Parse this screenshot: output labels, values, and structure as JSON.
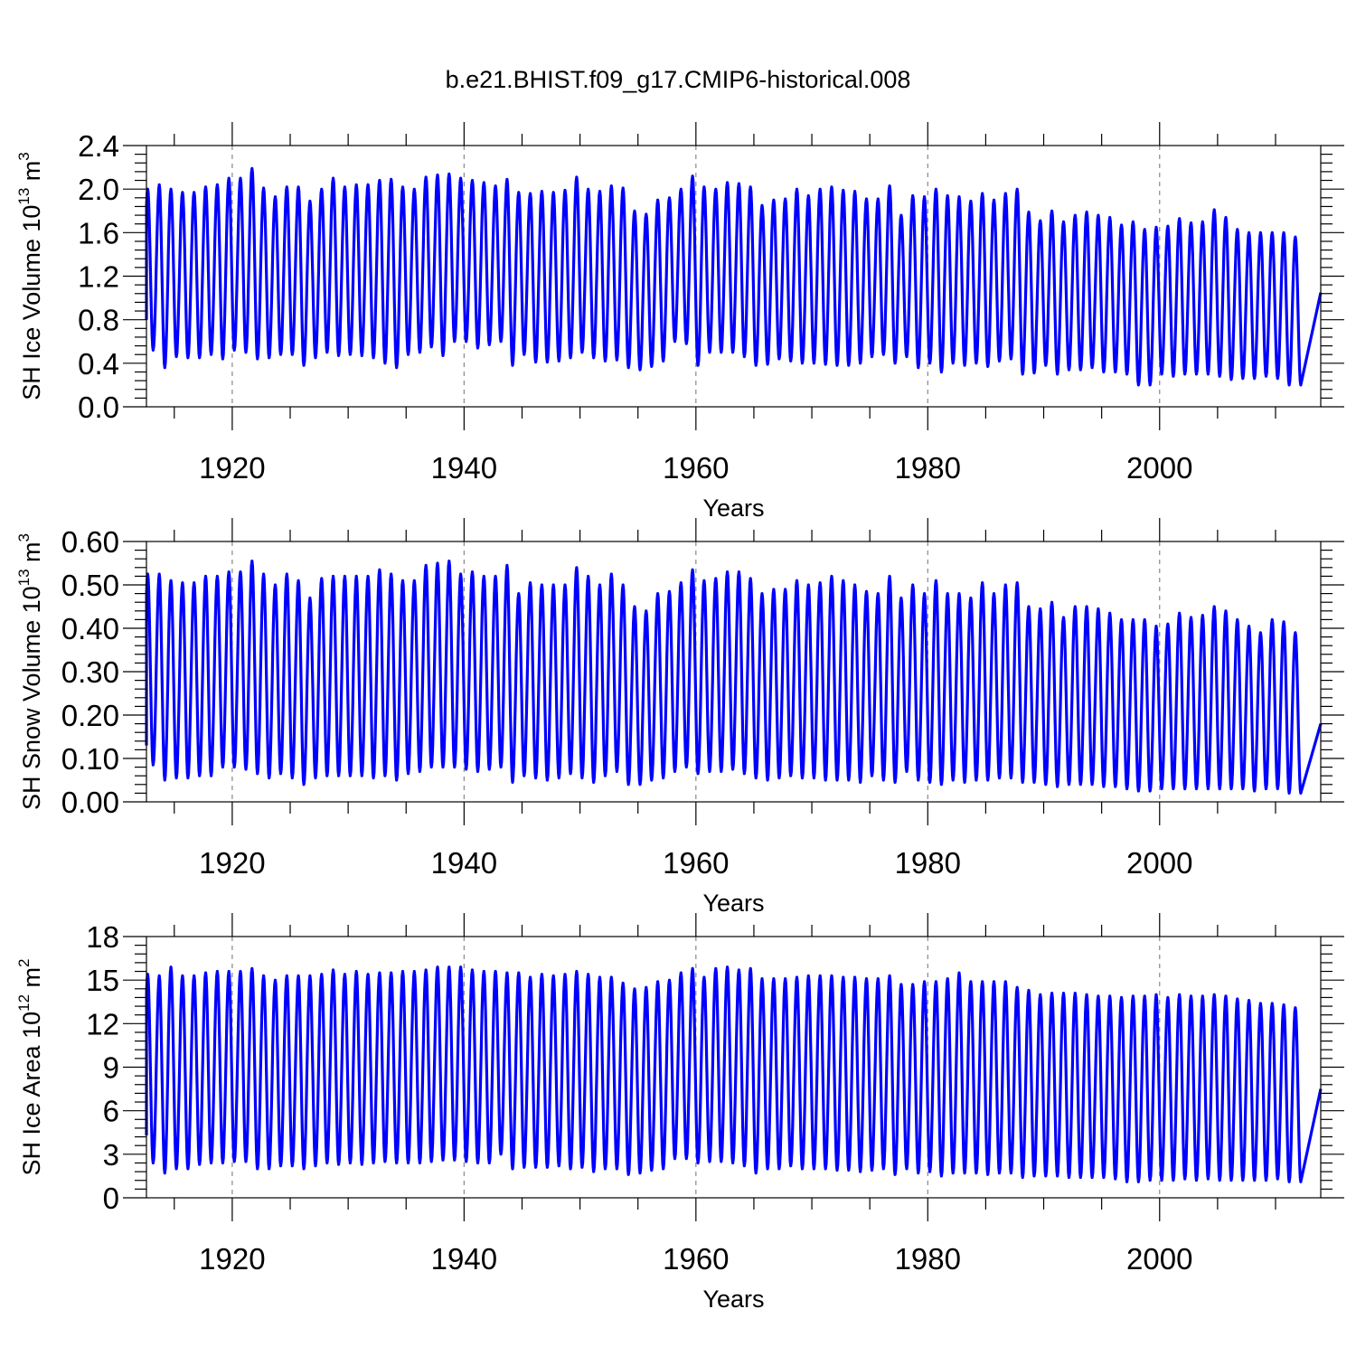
{
  "title": "b.e21.BHIST.f09_g17.CMIP6-historical.008",
  "colors": {
    "series": "#0000ff",
    "axis": "#000000",
    "grid": "#888888"
  },
  "chart_data": [
    {
      "type": "line",
      "id": "ice-volume",
      "ylabel": "SH Ice Volume",
      "ylabel_suffix": "10",
      "ylabel_exp": "13",
      "ylabel_unit": "m",
      "ylabel_unit_exp": "3",
      "xlabel": "Years",
      "xlim": [
        1912.6,
        2013.9
      ],
      "ylim": [
        0,
        2.4
      ],
      "yticks": [
        "0.0",
        "0.4",
        "0.8",
        "1.2",
        "1.6",
        "2.0",
        "2.4"
      ],
      "xticks": [
        "1920",
        "1940",
        "1960",
        "1980",
        "2000"
      ],
      "grid": "vertical dashed at labeled years",
      "series": [
        {
          "name": "SH Ice Volume",
          "annual_max": [
            2.0,
            2.04,
            2.0,
            1.97,
            1.97,
            2.02,
            2.04,
            2.1,
            2.1,
            2.19,
            2.01,
            1.93,
            2.02,
            2.02,
            1.89,
            2.0,
            2.1,
            2.02,
            2.04,
            2.04,
            2.08,
            2.09,
            2.02,
            2.0,
            2.11,
            2.13,
            2.14,
            2.1,
            2.08,
            2.06,
            2.03,
            2.09,
            1.97,
            1.96,
            1.98,
            1.97,
            1.99,
            2.11,
            2.0,
            1.98,
            2.03,
            2.01,
            1.8,
            1.77,
            1.9,
            1.92,
            2.0,
            2.12,
            2.02,
            2.0,
            2.06,
            2.05,
            2.02,
            1.85,
            1.9,
            1.91,
            2.0,
            1.94,
            2.0,
            2.02,
            1.99,
            1.98,
            1.91,
            1.91,
            2.03,
            1.76,
            1.94,
            1.93,
            2.0,
            1.94,
            1.93,
            1.89,
            1.96,
            1.9,
            1.96,
            2.0,
            1.79,
            1.71,
            1.8,
            1.7,
            1.76,
            1.79,
            1.76,
            1.74,
            1.67,
            1.7,
            1.63,
            1.65,
            1.66,
            1.73,
            1.69,
            1.7,
            1.81,
            1.74,
            1.63,
            1.6,
            1.6,
            1.6,
            1.6,
            1.56
          ],
          "annual_min": [
            0.49,
            0.52,
            0.36,
            0.46,
            0.45,
            0.45,
            0.48,
            0.44,
            0.52,
            0.5,
            0.44,
            0.45,
            0.48,
            0.48,
            0.38,
            0.45,
            0.5,
            0.47,
            0.48,
            0.47,
            0.45,
            0.4,
            0.36,
            0.48,
            0.5,
            0.55,
            0.47,
            0.6,
            0.6,
            0.54,
            0.57,
            0.6,
            0.38,
            0.48,
            0.41,
            0.41,
            0.42,
            0.45,
            0.5,
            0.45,
            0.42,
            0.43,
            0.36,
            0.34,
            0.37,
            0.42,
            0.6,
            0.58,
            0.38,
            0.5,
            0.5,
            0.5,
            0.46,
            0.38,
            0.39,
            0.44,
            0.42,
            0.4,
            0.4,
            0.39,
            0.38,
            0.38,
            0.4,
            0.46,
            0.48,
            0.4,
            0.46,
            0.36,
            0.4,
            0.32,
            0.4,
            0.38,
            0.4,
            0.37,
            0.42,
            0.44,
            0.3,
            0.31,
            0.38,
            0.3,
            0.34,
            0.34,
            0.36,
            0.32,
            0.32,
            0.3,
            0.2,
            0.2,
            0.3,
            0.28,
            0.3,
            0.3,
            0.3,
            0.28,
            0.25,
            0.26,
            0.26,
            0.28,
            0.26,
            0.2
          ],
          "start_value": 0.8,
          "end_value": 1.05
        }
      ]
    },
    {
      "type": "line",
      "id": "snow-volume",
      "ylabel": "SH Snow Volume",
      "ylabel_suffix": "10",
      "ylabel_exp": "13",
      "ylabel_unit": "m",
      "ylabel_unit_exp": "3",
      "xlabel": "Years",
      "xlim": [
        1912.6,
        2013.9
      ],
      "ylim": [
        0,
        0.6
      ],
      "yticks": [
        "0.00",
        "0.10",
        "0.20",
        "0.30",
        "0.40",
        "0.50",
        "0.60"
      ],
      "xticks": [
        "1920",
        "1940",
        "1960",
        "1980",
        "2000"
      ],
      "grid": "vertical dashed at labeled years",
      "series": [
        {
          "name": "SH Snow Volume",
          "annual_max": [
            0.525,
            0.525,
            0.51,
            0.505,
            0.505,
            0.52,
            0.52,
            0.53,
            0.53,
            0.555,
            0.525,
            0.5,
            0.525,
            0.51,
            0.47,
            0.515,
            0.52,
            0.52,
            0.52,
            0.52,
            0.535,
            0.525,
            0.51,
            0.51,
            0.545,
            0.55,
            0.555,
            0.525,
            0.53,
            0.52,
            0.52,
            0.545,
            0.48,
            0.505,
            0.5,
            0.5,
            0.5,
            0.54,
            0.52,
            0.5,
            0.525,
            0.5,
            0.45,
            0.44,
            0.48,
            0.485,
            0.505,
            0.535,
            0.51,
            0.515,
            0.53,
            0.53,
            0.515,
            0.48,
            0.49,
            0.49,
            0.51,
            0.5,
            0.505,
            0.52,
            0.51,
            0.5,
            0.485,
            0.48,
            0.52,
            0.47,
            0.5,
            0.48,
            0.51,
            0.48,
            0.48,
            0.47,
            0.505,
            0.48,
            0.5,
            0.505,
            0.45,
            0.445,
            0.46,
            0.425,
            0.45,
            0.45,
            0.445,
            0.435,
            0.42,
            0.42,
            0.42,
            0.405,
            0.41,
            0.435,
            0.425,
            0.43,
            0.45,
            0.44,
            0.42,
            0.405,
            0.39,
            0.42,
            0.415,
            0.39
          ],
          "annual_min": [
            0.08,
            0.085,
            0.05,
            0.055,
            0.055,
            0.06,
            0.06,
            0.08,
            0.08,
            0.075,
            0.065,
            0.055,
            0.065,
            0.055,
            0.04,
            0.055,
            0.06,
            0.06,
            0.06,
            0.06,
            0.055,
            0.06,
            0.05,
            0.065,
            0.07,
            0.08,
            0.08,
            0.08,
            0.075,
            0.07,
            0.075,
            0.08,
            0.045,
            0.06,
            0.055,
            0.05,
            0.055,
            0.065,
            0.055,
            0.045,
            0.06,
            0.07,
            0.04,
            0.04,
            0.05,
            0.055,
            0.07,
            0.08,
            0.065,
            0.07,
            0.07,
            0.075,
            0.065,
            0.055,
            0.05,
            0.055,
            0.06,
            0.055,
            0.055,
            0.05,
            0.05,
            0.05,
            0.045,
            0.06,
            0.05,
            0.045,
            0.07,
            0.05,
            0.045,
            0.04,
            0.05,
            0.045,
            0.05,
            0.05,
            0.055,
            0.055,
            0.045,
            0.045,
            0.04,
            0.035,
            0.04,
            0.04,
            0.04,
            0.035,
            0.035,
            0.03,
            0.025,
            0.025,
            0.03,
            0.03,
            0.03,
            0.03,
            0.03,
            0.03,
            0.03,
            0.03,
            0.025,
            0.03,
            0.03,
            0.02
          ],
          "start_value": 0.13,
          "end_value": 0.18
        }
      ]
    },
    {
      "type": "line",
      "id": "ice-area",
      "ylabel": "SH Ice Area",
      "ylabel_suffix": "10",
      "ylabel_exp": "12",
      "ylabel_unit": "m",
      "ylabel_unit_exp": "2",
      "xlabel": "Years",
      "xlim": [
        1912.6,
        2013.9
      ],
      "ylim": [
        0,
        18
      ],
      "yticks": [
        "0",
        "3",
        "6",
        "9",
        "12",
        "15",
        "18"
      ],
      "xticks": [
        "1920",
        "1940",
        "1960",
        "1980",
        "2000"
      ],
      "grid": "vertical dashed at labeled years",
      "series": [
        {
          "name": "SH Ice Area",
          "annual_max": [
            15.4,
            15.3,
            15.9,
            15.3,
            15.3,
            15.5,
            15.6,
            15.6,
            15.6,
            15.8,
            15.3,
            15.0,
            15.3,
            15.3,
            15.3,
            15.4,
            15.7,
            15.4,
            15.6,
            15.4,
            15.5,
            15.5,
            15.6,
            15.6,
            15.7,
            15.9,
            15.9,
            15.9,
            15.7,
            15.6,
            15.6,
            15.5,
            15.5,
            15.2,
            15.4,
            15.3,
            15.4,
            15.6,
            15.4,
            15.2,
            15.2,
            14.8,
            14.4,
            14.5,
            14.9,
            15.0,
            15.5,
            15.8,
            15.2,
            15.8,
            15.9,
            15.7,
            15.8,
            15.1,
            15.1,
            15.1,
            15.2,
            15.3,
            15.3,
            15.3,
            15.2,
            15.2,
            15.1,
            15.1,
            15.3,
            14.7,
            14.7,
            14.9,
            14.9,
            15.1,
            15.5,
            14.9,
            14.9,
            14.9,
            14.9,
            14.5,
            14.3,
            14.0,
            14.1,
            14.1,
            14.1,
            14.0,
            13.9,
            13.9,
            13.8,
            13.9,
            13.9,
            14.0,
            13.8,
            14.0,
            13.9,
            13.9,
            14.0,
            13.9,
            13.7,
            13.6,
            13.4,
            13.4,
            13.3,
            13.1
          ],
          "annual_min": [
            2.3,
            2.4,
            1.7,
            2.0,
            2.0,
            2.3,
            2.4,
            2.4,
            2.5,
            2.5,
            2.0,
            2.0,
            2.2,
            2.2,
            2.0,
            2.2,
            2.4,
            2.3,
            2.4,
            2.3,
            2.4,
            2.5,
            2.4,
            2.4,
            2.4,
            2.5,
            2.6,
            2.6,
            2.5,
            2.4,
            2.4,
            3.0,
            2.0,
            2.1,
            2.1,
            2.1,
            2.2,
            2.0,
            2.1,
            1.8,
            2.0,
            2.0,
            1.6,
            1.7,
            1.9,
            2.0,
            2.7,
            2.7,
            2.4,
            2.5,
            2.5,
            2.4,
            2.2,
            1.7,
            2.0,
            2.0,
            2.2,
            2.0,
            2.0,
            2.0,
            1.9,
            1.9,
            1.8,
            1.9,
            2.0,
            1.6,
            2.0,
            1.7,
            1.8,
            1.5,
            1.7,
            1.7,
            1.7,
            1.6,
            1.7,
            1.7,
            1.4,
            1.5,
            1.5,
            1.5,
            1.4,
            1.4,
            1.4,
            1.4,
            1.3,
            1.1,
            1.1,
            1.2,
            1.2,
            1.2,
            1.3,
            1.2,
            1.3,
            1.2,
            1.2,
            1.2,
            1.2,
            1.2,
            1.3,
            1.1
          ],
          "start_value": 4.3,
          "end_value": 7.5
        }
      ]
    }
  ]
}
